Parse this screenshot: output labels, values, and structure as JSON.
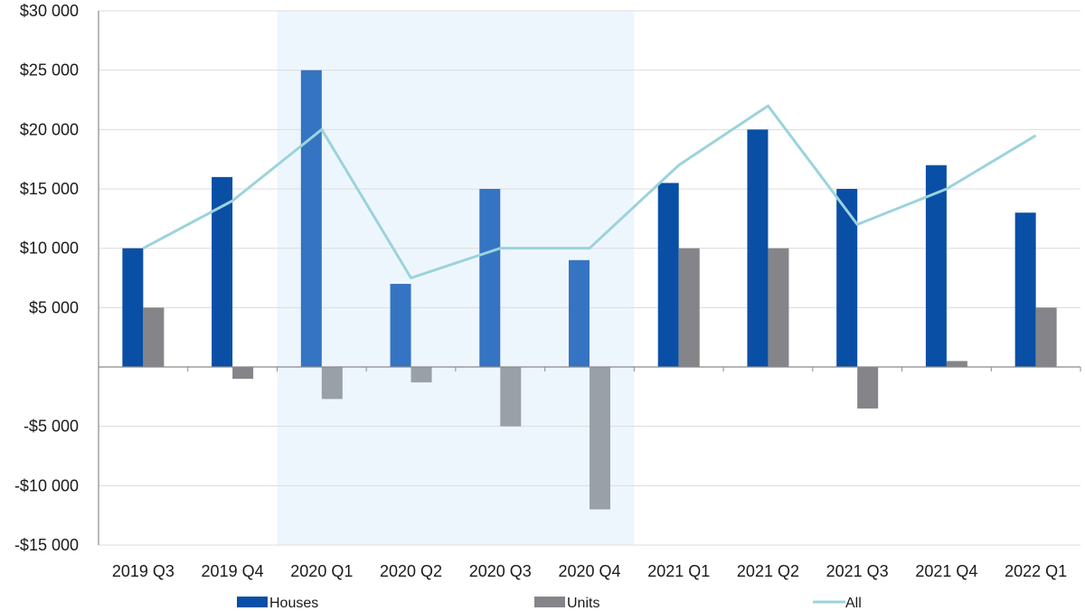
{
  "chart_data": {
    "type": "bar",
    "title": "",
    "xlabel": "",
    "ylabel": "",
    "categories": [
      "2019 Q3",
      "2019 Q4",
      "2020 Q1",
      "2020 Q2",
      "2020 Q3",
      "2020 Q4",
      "2021 Q1",
      "2021 Q2",
      "2021 Q3",
      "2021 Q4",
      "2022 Q1"
    ],
    "ylim": [
      -15000,
      30000
    ],
    "yticks": [
      30000,
      25000,
      20000,
      15000,
      10000,
      5000,
      0,
      -5000,
      -10000,
      -15000
    ],
    "ytick_labels": [
      "$30 000",
      "$25 000",
      "$20 000",
      "$15 000",
      "$10 000",
      "$5 000",
      "",
      "-$5 000",
      "-$10 000",
      "-$15 000"
    ],
    "grid": true,
    "legend_position": "bottom",
    "highlight": {
      "from": "2020 Q1",
      "to": "2020 Q4",
      "color": "#eef6fd"
    },
    "series": [
      {
        "name": "Houses",
        "kind": "bar",
        "color": "#0a4fa6",
        "highlight_color": "#3474c2",
        "values": [
          10000,
          16000,
          25000,
          7000,
          15000,
          9000,
          15500,
          20000,
          15000,
          17000,
          13000
        ]
      },
      {
        "name": "Units",
        "kind": "bar",
        "color": "#858589",
        "highlight_color": "#9aa0a8",
        "values": [
          5000,
          -1000,
          -2700,
          -1300,
          -5000,
          -12000,
          10000,
          10000,
          -3500,
          500,
          5000
        ]
      },
      {
        "name": "All",
        "kind": "line",
        "color": "#9bd3dc",
        "values": [
          10000,
          14000,
          20000,
          7500,
          10000,
          10000,
          17000,
          22000,
          12000,
          15000,
          19500
        ]
      }
    ]
  }
}
